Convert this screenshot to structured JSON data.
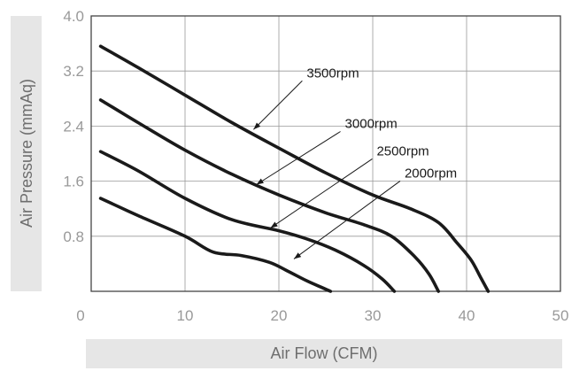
{
  "chart_data": {
    "type": "line",
    "xlabel": "Air Flow (CFM)",
    "ylabel": "Air Pressure (mmAq)",
    "xlim": [
      0,
      50
    ],
    "ylim": [
      0,
      4.0
    ],
    "x_ticks": [
      "0",
      "10",
      "20",
      "30",
      "40",
      "50"
    ],
    "y_ticks": [
      "0.8",
      "1.6",
      "2.4",
      "3.2",
      "4.0"
    ],
    "grid": true,
    "series": [
      {
        "name": "3500rpm",
        "x": [
          1,
          5,
          10,
          15,
          20,
          25,
          30,
          34,
          37,
          39,
          40.5,
          41.5,
          42.3
        ],
        "y": [
          3.56,
          3.25,
          2.85,
          2.45,
          2.08,
          1.72,
          1.4,
          1.2,
          1.0,
          0.7,
          0.45,
          0.2,
          0.0
        ]
      },
      {
        "name": "3000rpm",
        "x": [
          1,
          5,
          10,
          15,
          20,
          25,
          29,
          32,
          34.5,
          36,
          37
        ],
        "y": [
          2.78,
          2.45,
          2.05,
          1.7,
          1.4,
          1.14,
          0.97,
          0.8,
          0.5,
          0.25,
          0.0
        ]
      },
      {
        "name": "2500rpm",
        "x": [
          1,
          5,
          10,
          15,
          20,
          23,
          26,
          29,
          31,
          32.3
        ],
        "y": [
          2.03,
          1.75,
          1.35,
          1.04,
          0.88,
          0.76,
          0.6,
          0.38,
          0.18,
          0.0
        ]
      },
      {
        "name": "2000rpm",
        "x": [
          1,
          5,
          10,
          13,
          16,
          19,
          21,
          23,
          24.5,
          25.5
        ],
        "y": [
          1.35,
          1.1,
          0.8,
          0.57,
          0.52,
          0.42,
          0.29,
          0.15,
          0.06,
          0.0
        ]
      }
    ],
    "annotations": [
      {
        "text": "3500rpm",
        "arrow_to": [
          17.3,
          2.35
        ]
      },
      {
        "text": "3000rpm",
        "arrow_to": [
          17.6,
          1.55
        ]
      },
      {
        "text": "2500rpm",
        "arrow_to": [
          19.1,
          0.92
        ]
      },
      {
        "text": "2000rpm",
        "arrow_to": [
          21.6,
          0.47
        ]
      }
    ]
  },
  "colors": {
    "curve": "#1a1a1a",
    "grid": "#999999",
    "tick_text": "#999999",
    "title_band": "#e6e6e6",
    "title_text": "#6e6e6e"
  }
}
